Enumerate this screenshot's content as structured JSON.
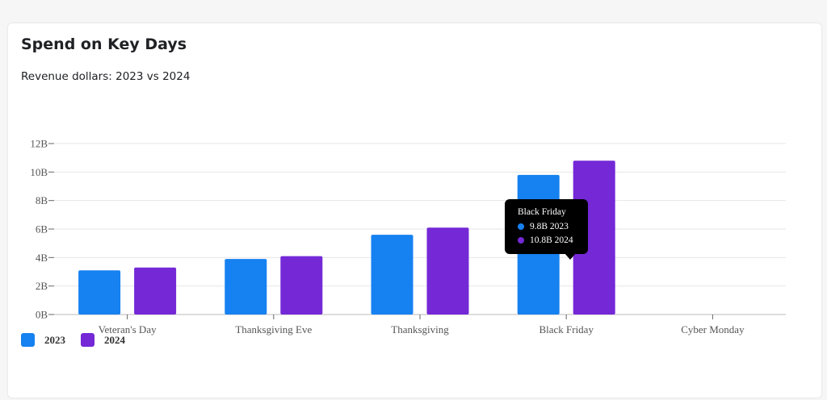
{
  "chart_data": {
    "type": "bar",
    "title": "Spend on Key Days",
    "subtitle": "Revenue dollars: 2023 vs 2024",
    "categories": [
      "Veteran's Day",
      "Thanksgiving Eve",
      "Thanksgiving",
      "Black Friday",
      "Cyber Monday"
    ],
    "series": [
      {
        "name": "2023",
        "color": "#1681f0",
        "values": [
          3.1,
          3.9,
          5.6,
          9.8,
          null
        ]
      },
      {
        "name": "2024",
        "color": "#7428d6",
        "values": [
          3.3,
          4.1,
          6.1,
          10.8,
          null
        ]
      }
    ],
    "y_ticks": [
      "0B",
      "2B",
      "4B",
      "6B",
      "8B",
      "10B",
      "12B"
    ],
    "ylim": [
      0,
      12
    ],
    "grid": true,
    "legend": "bottom-left",
    "tooltip": {
      "title": "Black Friday",
      "rows": [
        "9.8B 2023",
        "10.8B 2024"
      ]
    }
  }
}
